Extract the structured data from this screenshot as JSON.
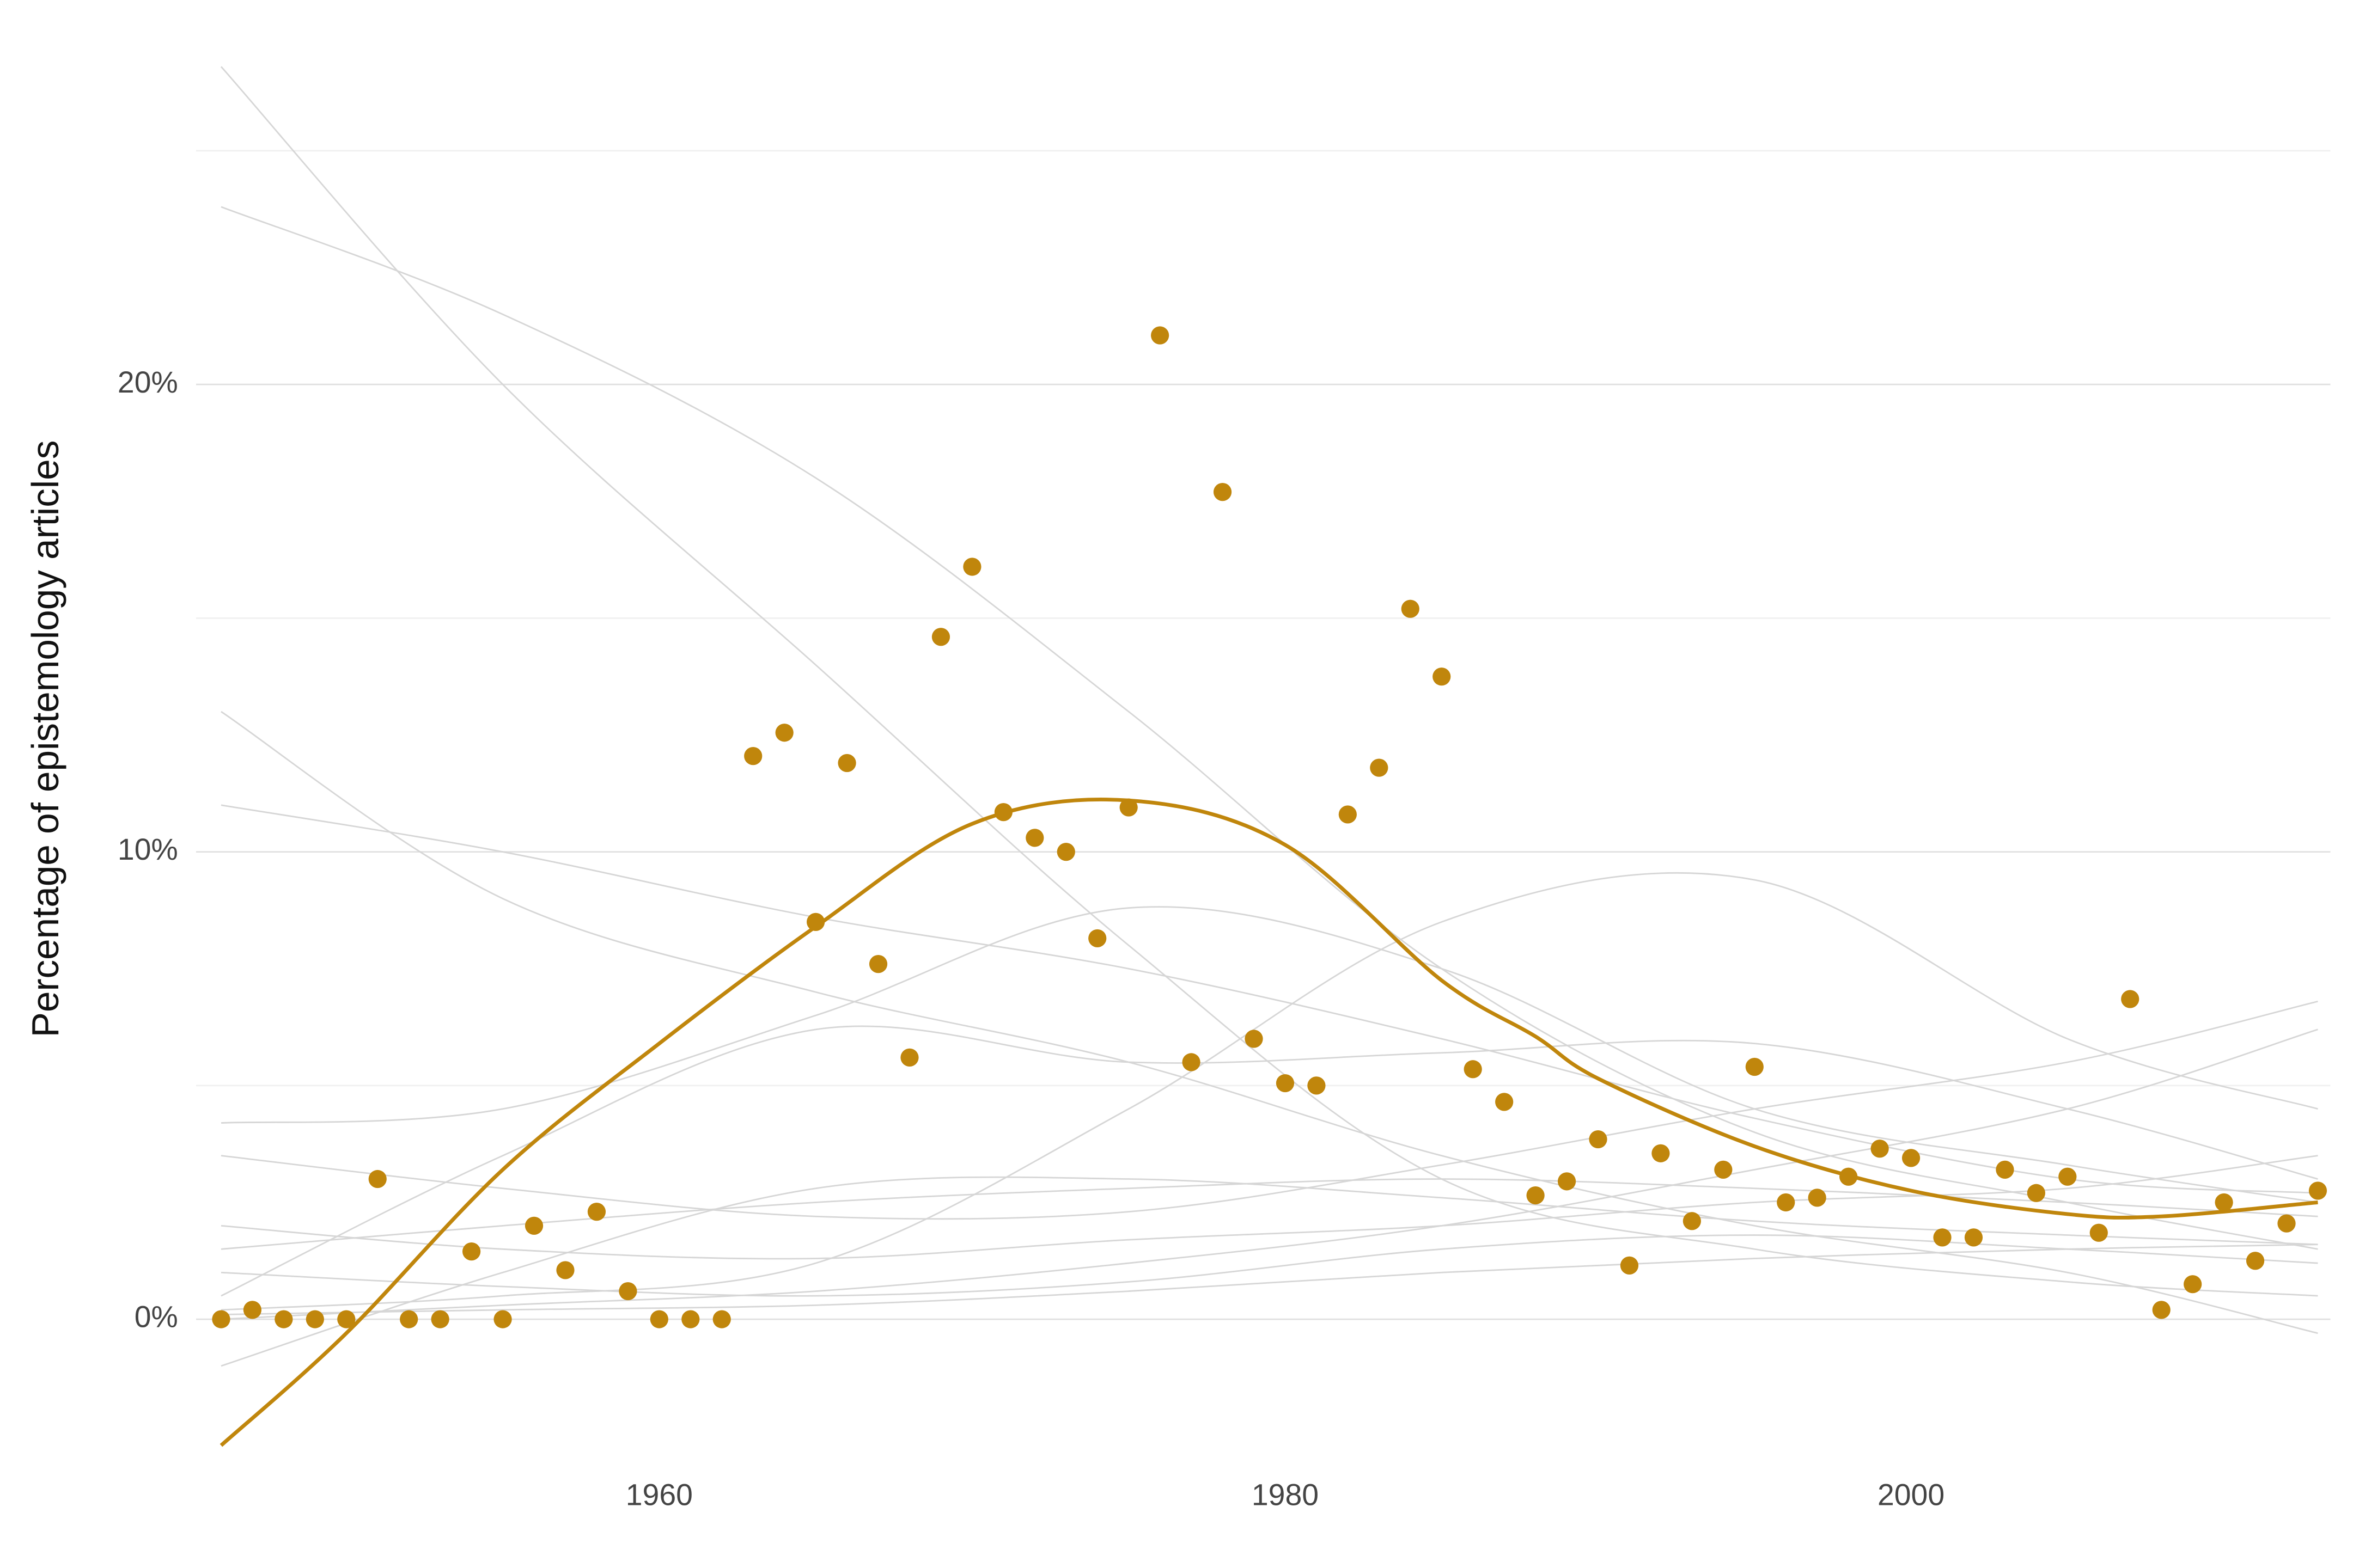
{
  "chart_data": {
    "type": "scatter",
    "y_label": "Percentage of epistemology articles",
    "color": "#c0860c",
    "x": [
      1946,
      1947,
      1948,
      1949,
      1950,
      1951,
      1952,
      1953,
      1954,
      1955,
      1956,
      1957,
      1958,
      1959,
      1960,
      1961,
      1962,
      1963,
      1964,
      1965,
      1966,
      1967,
      1968,
      1969,
      1970,
      1971,
      1972,
      1973,
      1974,
      1975,
      1976,
      1977,
      1978,
      1979,
      1980,
      1981,
      1982,
      1983,
      1984,
      1985,
      1986,
      1987,
      1988,
      1989,
      1990,
      1991,
      1992,
      1993,
      1994,
      1995,
      1996,
      1997,
      1998,
      1999,
      2000,
      2001,
      2002,
      2003,
      2004,
      2005,
      2006,
      2007,
      2008,
      2009,
      2010,
      2011,
      2012,
      2013
    ],
    "values": [
      0,
      0.2,
      0,
      0,
      0,
      3.0,
      0,
      0,
      1.45,
      0,
      2.0,
      1.05,
      2.3,
      0.6,
      0,
      0,
      0,
      12.05,
      12.55,
      8.5,
      11.9,
      7.6,
      5.6,
      14.6,
      16.1,
      10.85,
      10.3,
      10.0,
      8.15,
      10.95,
      21.05,
      5.5,
      17.7,
      6.0,
      5.05,
      5.0,
      10.8,
      11.8,
      15.2,
      13.75,
      5.35,
      4.65,
      2.65,
      2.95,
      3.85,
      1.15,
      3.55,
      2.1,
      3.2,
      5.4,
      2.5,
      2.6,
      3.05,
      3.65,
      3.45,
      1.75,
      1.75,
      3.2,
      2.7,
      3.05,
      1.85,
      6.85,
      0.2,
      0.75,
      2.5,
      1.25,
      2.05,
      2.75
    ],
    "trend": {
      "x": [
        1946,
        1950,
        1955,
        1960,
        1965,
        1970,
        1975,
        1980,
        1985,
        1988,
        1990,
        1995,
        2000,
        2005,
        2008,
        2013
      ],
      "values": [
        -2.7,
        -0.3,
        3.2,
        5.9,
        8.4,
        10.6,
        11.1,
        10.15,
        7.25,
        6.05,
        5.15,
        3.7,
        2.75,
        2.25,
        2.2,
        2.5
      ]
    },
    "background_lines": {
      "color": "#d6d6d6",
      "x": [
        1946,
        1955,
        1965,
        1975,
        1985,
        1995,
        2005,
        2013
      ],
      "series": [
        {
          "values": [
            26.8,
            20,
            14,
            8,
            3,
            1.5,
            0.8,
            0.5
          ]
        },
        {
          "values": [
            23.8,
            21.5,
            18,
            13,
            7.5,
            4,
            2.5,
            1.5
          ]
        },
        {
          "values": [
            13,
            9,
            7,
            5.5,
            3.5,
            2,
            1,
            -0.3
          ]
        },
        {
          "values": [
            11,
            10,
            8.6,
            7.5,
            6,
            4.3,
            3,
            2.7
          ]
        },
        {
          "values": [
            4.2,
            4.5,
            6.5,
            8.8,
            7.5,
            4.5,
            3.3,
            2.5
          ]
        },
        {
          "values": [
            0.5,
            3.5,
            6.2,
            5.5,
            5.7,
            5.9,
            4.5,
            3
          ]
        },
        {
          "values": [
            0.2,
            0.5,
            1.2,
            4.5,
            8.5,
            9.4,
            6,
            4.5
          ]
        },
        {
          "values": [
            3.5,
            2.8,
            2.2,
            2.3,
            3.3,
            4.5,
            5.5,
            6.8
          ]
        },
        {
          "values": [
            1.5,
            2,
            2.5,
            2.8,
            3,
            2.8,
            2.5,
            2.2
          ]
        },
        {
          "values": [
            0,
            0.3,
            0.6,
            1.2,
            2,
            3.2,
            4.5,
            6.2
          ]
        },
        {
          "values": [
            2,
            1.5,
            1.3,
            1.7,
            2,
            2.5,
            2.8,
            3.5
          ]
        },
        {
          "values": [
            -1,
            1,
            2.8,
            3,
            2.6,
            2.1,
            1.8,
            1.6
          ]
        },
        {
          "values": [
            1,
            0.7,
            0.5,
            0.8,
            1.5,
            1.8,
            1.5,
            1.2
          ]
        },
        {
          "values": [
            0.1,
            0.2,
            0.3,
            0.6,
            1,
            1.3,
            1.5,
            1.6
          ]
        }
      ]
    },
    "xlim": [
      1945.2,
      2013.4
    ],
    "ylim": [
      -4,
      27
    ],
    "xticks": [
      1960,
      1980,
      2000
    ],
    "yticks": [
      {
        "value": 0,
        "label": "0%"
      },
      {
        "value": 10,
        "label": "10%"
      },
      {
        "value": 20,
        "label": "20%"
      }
    ],
    "minor_yticks": [
      5,
      15,
      25
    ],
    "grid": true
  }
}
